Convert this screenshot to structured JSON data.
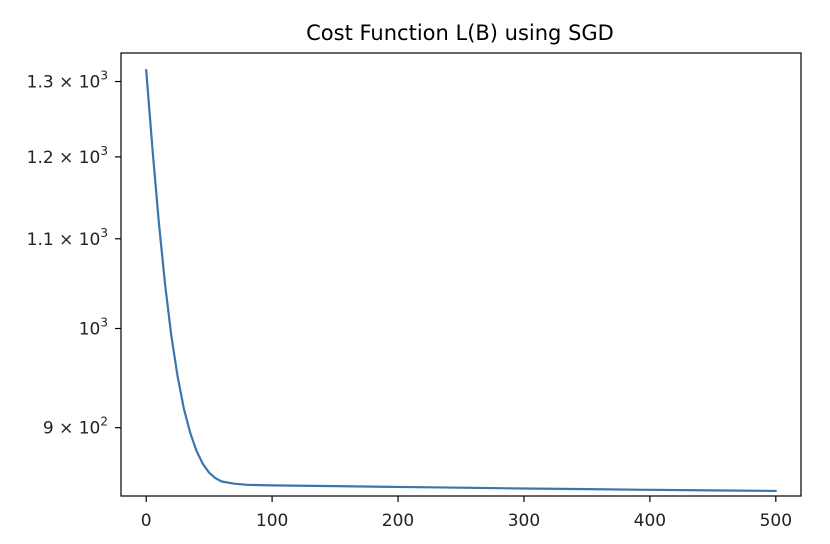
{
  "chart_data": {
    "type": "line",
    "title": "Cost Function L(B) using SGD",
    "xlabel": "",
    "ylabel": "",
    "xlim": [
      -20,
      520
    ],
    "ylim": [
      837,
      1340
    ],
    "yscale": "log",
    "grid": false,
    "legend": "none",
    "x_ticks": [
      {
        "value": 0,
        "label": "0"
      },
      {
        "value": 100,
        "label": "100"
      },
      {
        "value": 200,
        "label": "200"
      },
      {
        "value": 300,
        "label": "300"
      },
      {
        "value": 400,
        "label": "400"
      },
      {
        "value": 500,
        "label": "500"
      }
    ],
    "y_ticks": [
      {
        "value": 1300,
        "mantissa": "1.3 × 10",
        "exp": "3"
      },
      {
        "value": 1200,
        "mantissa": "1.2 × 10",
        "exp": "3"
      },
      {
        "value": 1100,
        "mantissa": "1.1 × 10",
        "exp": "3"
      },
      {
        "value": 1000,
        "mantissa": "10",
        "exp": "3"
      },
      {
        "value": 900,
        "mantissa": "9 × 10",
        "exp": "2"
      }
    ],
    "series": [
      {
        "color": "#3b75af",
        "x": [
          0,
          5,
          10,
          15,
          20,
          25,
          30,
          35,
          40,
          45,
          50,
          55,
          60,
          70,
          80,
          100,
          150,
          200,
          250,
          300,
          350,
          400,
          450,
          500
        ],
        "y": [
          1316,
          1210,
          1120,
          1048,
          992,
          950,
          918,
          895,
          878,
          866,
          858,
          853,
          850,
          848,
          847,
          846.5,
          845.8,
          845.1,
          844.4,
          843.7,
          843.1,
          842.5,
          842,
          841.5
        ]
      }
    ]
  }
}
